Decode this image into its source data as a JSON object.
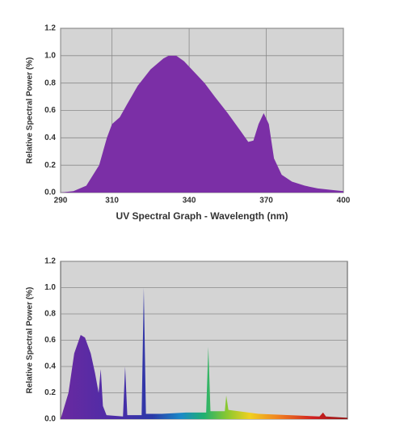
{
  "chart_data": [
    {
      "type": "area",
      "color": "#7b2fa6",
      "y_label": "Relative Spectral Power (%)",
      "x_label": "UV Spectral Graph - Wavelength (nm)",
      "x": [
        290,
        295,
        300,
        305,
        308,
        310,
        313,
        316,
        320,
        325,
        330,
        332,
        335,
        338,
        342,
        346,
        350,
        355,
        360,
        363,
        365,
        367,
        369,
        371,
        373,
        376,
        380,
        385,
        390,
        395,
        400
      ],
      "values": [
        0,
        0.01,
        0.05,
        0.2,
        0.4,
        0.5,
        0.55,
        0.65,
        0.78,
        0.9,
        0.98,
        1,
        1,
        0.96,
        0.88,
        0.8,
        0.7,
        0.58,
        0.45,
        0.37,
        0.38,
        0.5,
        0.58,
        0.5,
        0.25,
        0.13,
        0.08,
        0.05,
        0.03,
        0.02,
        0.01
      ],
      "xlim": [
        290,
        400
      ],
      "xticks": [
        290,
        310,
        340,
        370,
        400
      ],
      "ylim": [
        0,
        1.2
      ],
      "yticks": [
        {
          "value": 0,
          "label": "0.0"
        },
        0.2,
        0.4,
        0.6,
        0.8,
        {
          "value": 1,
          "label": "1.0"
        },
        1.2
      ],
      "grid": true
    },
    {
      "type": "area",
      "y_label": "Relative Spectral Power (%)",
      "x": [
        350,
        361,
        369,
        378,
        384,
        392,
        398,
        403,
        406,
        409,
        414,
        437,
        440,
        443,
        463,
        466,
        469,
        491,
        525,
        553,
        556,
        559,
        579,
        581,
        584,
        626,
        711,
        716,
        720,
        750
      ],
      "values": [
        0,
        0.2,
        0.5,
        0.64,
        0.62,
        0.5,
        0.35,
        0.2,
        0.38,
        0.1,
        0.03,
        0.02,
        0.4,
        0.03,
        0.03,
        1,
        0.04,
        0.04,
        0.05,
        0.05,
        0.55,
        0.06,
        0.06,
        0.18,
        0.07,
        0.04,
        0.02,
        0.05,
        0.02,
        0.01
      ],
      "xlim": [
        350,
        750
      ],
      "ylim": [
        0,
        1.2
      ],
      "yticks": [
        {
          "value": 0,
          "label": "0.0"
        },
        0.2,
        0.4,
        0.6,
        0.8,
        {
          "value": 1,
          "label": "1.0"
        },
        1.2
      ],
      "grid": true
    }
  ]
}
